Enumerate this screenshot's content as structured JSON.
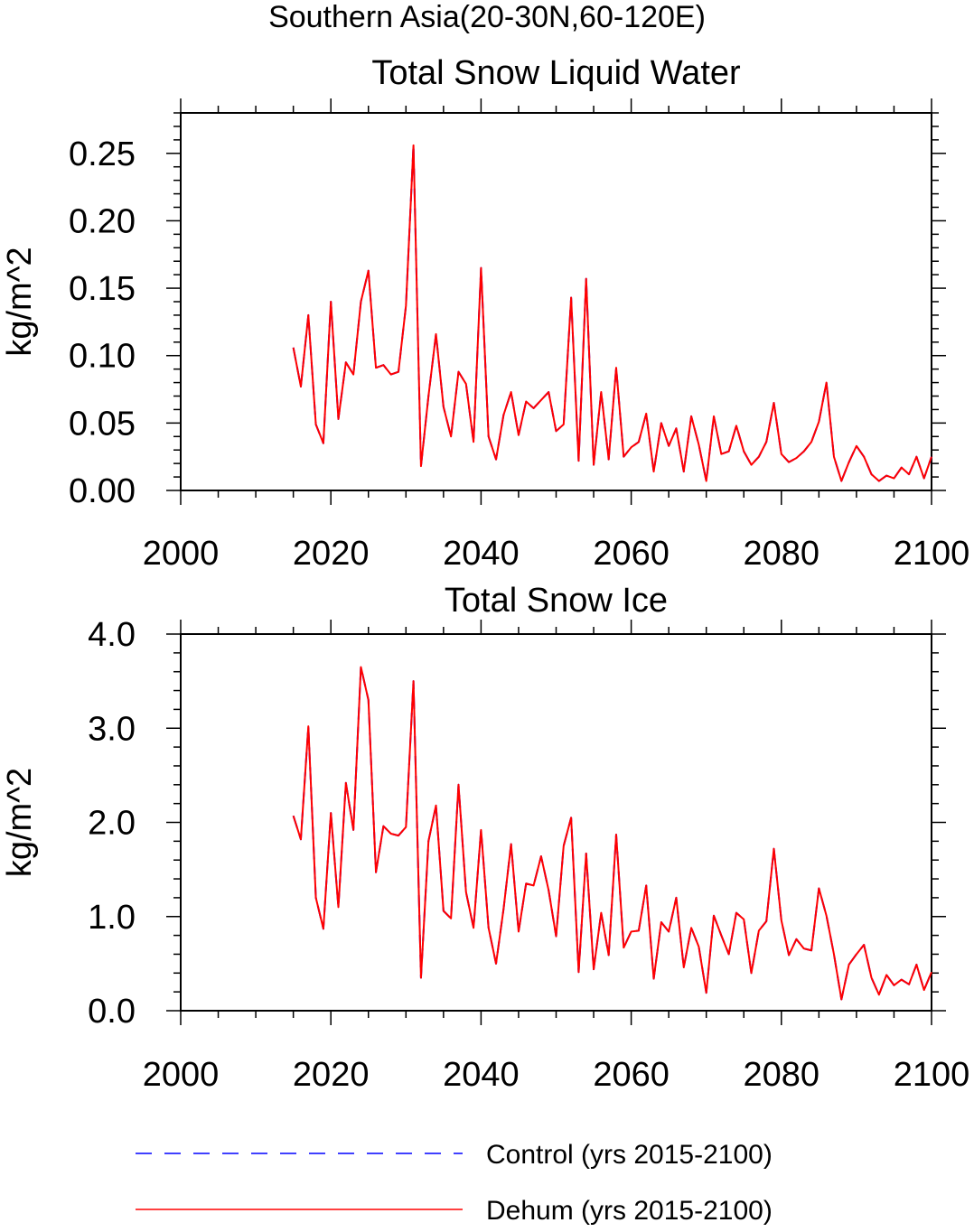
{
  "figure": {
    "suptitle": "Southern Asia(20-30N,60-120E)"
  },
  "chart_data": [
    {
      "type": "line",
      "title": "Total Snow Liquid Water",
      "xlabel": "",
      "ylabel": "kg/m^2",
      "xlim": [
        2000,
        2100
      ],
      "ylim": [
        0.0,
        0.28
      ],
      "xticks": [
        2000,
        2020,
        2040,
        2060,
        2080,
        2100
      ],
      "xtick_labels": [
        "2000",
        "2020",
        "2040",
        "2060",
        "2080",
        "2100"
      ],
      "yticks": [
        0.0,
        0.05,
        0.1,
        0.15,
        0.2,
        0.25
      ],
      "ytick_labels": [
        "0.00",
        "0.05",
        "0.10",
        "0.15",
        "0.20",
        "0.25"
      ],
      "x": [
        2015,
        2016,
        2017,
        2018,
        2019,
        2020,
        2021,
        2022,
        2023,
        2024,
        2025,
        2026,
        2027,
        2028,
        2029,
        2030,
        2031,
        2032,
        2033,
        2034,
        2035,
        2036,
        2037,
        2038,
        2039,
        2040,
        2041,
        2042,
        2043,
        2044,
        2045,
        2046,
        2047,
        2048,
        2049,
        2050,
        2051,
        2052,
        2053,
        2054,
        2055,
        2056,
        2057,
        2058,
        2059,
        2060,
        2061,
        2062,
        2063,
        2064,
        2065,
        2066,
        2067,
        2068,
        2069,
        2070,
        2071,
        2072,
        2073,
        2074,
        2075,
        2076,
        2077,
        2078,
        2079,
        2080,
        2081,
        2082,
        2083,
        2084,
        2085,
        2086,
        2087,
        2088,
        2089,
        2090,
        2091,
        2092,
        2093,
        2094,
        2095,
        2096,
        2097,
        2098,
        2099,
        2100
      ],
      "series": [
        {
          "name": "Control (yrs 2015-2100)",
          "color": "#0000ff",
          "style": "dashed",
          "values": [
            0.106,
            0.077,
            0.13,
            0.049,
            0.035,
            0.14,
            0.053,
            0.095,
            0.086,
            0.14,
            0.163,
            0.091,
            0.093,
            0.086,
            0.088,
            0.137,
            0.256,
            0.018,
            0.07,
            0.116,
            0.062,
            0.04,
            0.088,
            0.079,
            0.036,
            0.165,
            0.04,
            0.023,
            0.056,
            0.073,
            0.041,
            0.066,
            0.061,
            0.067,
            0.073,
            0.044,
            0.049,
            0.143,
            0.022,
            0.157,
            0.019,
            0.073,
            0.023,
            0.091,
            0.025,
            0.032,
            0.036,
            0.057,
            0.014,
            0.05,
            0.033,
            0.046,
            0.014,
            0.055,
            0.034,
            0.007,
            0.055,
            0.027,
            0.029,
            0.048,
            0.029,
            0.019,
            0.025,
            0.036,
            0.065,
            0.027,
            0.021,
            0.024,
            0.029,
            0.036,
            0.051,
            0.08,
            0.025,
            0.007,
            0.021,
            0.033,
            0.025,
            0.012,
            0.007,
            0.011,
            0.009,
            0.017,
            0.012,
            0.025,
            0.009,
            0.025
          ]
        },
        {
          "name": "Dehum (yrs 2015-2100)",
          "color": "#ff0000",
          "style": "solid",
          "values": [
            0.106,
            0.077,
            0.13,
            0.049,
            0.035,
            0.14,
            0.053,
            0.095,
            0.086,
            0.14,
            0.163,
            0.091,
            0.093,
            0.086,
            0.088,
            0.137,
            0.256,
            0.018,
            0.07,
            0.116,
            0.062,
            0.04,
            0.088,
            0.079,
            0.036,
            0.165,
            0.04,
            0.023,
            0.056,
            0.073,
            0.041,
            0.066,
            0.061,
            0.067,
            0.073,
            0.044,
            0.049,
            0.143,
            0.022,
            0.157,
            0.019,
            0.073,
            0.023,
            0.091,
            0.025,
            0.032,
            0.036,
            0.057,
            0.014,
            0.05,
            0.033,
            0.046,
            0.014,
            0.055,
            0.034,
            0.007,
            0.055,
            0.027,
            0.029,
            0.048,
            0.029,
            0.019,
            0.025,
            0.036,
            0.065,
            0.027,
            0.021,
            0.024,
            0.029,
            0.036,
            0.051,
            0.08,
            0.025,
            0.007,
            0.021,
            0.033,
            0.025,
            0.012,
            0.007,
            0.011,
            0.009,
            0.017,
            0.012,
            0.025,
            0.009,
            0.025
          ]
        }
      ]
    },
    {
      "type": "line",
      "title": "Total Snow Ice",
      "xlabel": "",
      "ylabel": "kg/m^2",
      "xlim": [
        2000,
        2100
      ],
      "ylim": [
        0.0,
        4.0
      ],
      "xticks": [
        2000,
        2020,
        2040,
        2060,
        2080,
        2100
      ],
      "xtick_labels": [
        "2000",
        "2020",
        "2040",
        "2060",
        "2080",
        "2100"
      ],
      "yticks": [
        0.0,
        1.0,
        2.0,
        3.0,
        4.0
      ],
      "ytick_labels": [
        "0.0",
        "1.0",
        "2.0",
        "3.0",
        "4.0"
      ],
      "x": [
        2015,
        2016,
        2017,
        2018,
        2019,
        2020,
        2021,
        2022,
        2023,
        2024,
        2025,
        2026,
        2027,
        2028,
        2029,
        2030,
        2031,
        2032,
        2033,
        2034,
        2035,
        2036,
        2037,
        2038,
        2039,
        2040,
        2041,
        2042,
        2043,
        2044,
        2045,
        2046,
        2047,
        2048,
        2049,
        2050,
        2051,
        2052,
        2053,
        2054,
        2055,
        2056,
        2057,
        2058,
        2059,
        2060,
        2061,
        2062,
        2063,
        2064,
        2065,
        2066,
        2067,
        2068,
        2069,
        2070,
        2071,
        2072,
        2073,
        2074,
        2075,
        2076,
        2077,
        2078,
        2079,
        2080,
        2081,
        2082,
        2083,
        2084,
        2085,
        2086,
        2087,
        2088,
        2089,
        2090,
        2091,
        2092,
        2093,
        2094,
        2095,
        2096,
        2097,
        2098,
        2099,
        2100
      ],
      "series": [
        {
          "name": "Control (yrs 2015-2100)",
          "color": "#0000ff",
          "style": "dashed",
          "values": [
            2.07,
            1.82,
            3.02,
            1.2,
            0.87,
            2.1,
            1.1,
            2.42,
            1.92,
            3.65,
            3.3,
            1.47,
            1.96,
            1.88,
            1.86,
            1.95,
            3.5,
            0.35,
            1.8,
            2.18,
            1.06,
            0.98,
            2.4,
            1.26,
            0.88,
            1.92,
            0.88,
            0.5,
            1.08,
            1.77,
            0.84,
            1.35,
            1.33,
            1.64,
            1.28,
            0.79,
            1.75,
            2.05,
            0.41,
            1.67,
            0.44,
            1.04,
            0.59,
            1.87,
            0.67,
            0.84,
            0.85,
            1.33,
            0.34,
            0.94,
            0.84,
            1.2,
            0.46,
            0.88,
            0.68,
            0.19,
            1.01,
            0.8,
            0.6,
            1.04,
            0.97,
            0.4,
            0.85,
            0.95,
            1.72,
            0.96,
            0.59,
            0.76,
            0.66,
            0.64,
            1.3,
            1.01,
            0.6,
            0.12,
            0.49,
            0.6,
            0.7,
            0.35,
            0.17,
            0.38,
            0.27,
            0.33,
            0.28,
            0.49,
            0.22,
            0.41
          ]
        },
        {
          "name": "Dehum (yrs 2015-2100)",
          "color": "#ff0000",
          "style": "solid",
          "values": [
            2.07,
            1.82,
            3.02,
            1.2,
            0.87,
            2.1,
            1.1,
            2.42,
            1.92,
            3.65,
            3.3,
            1.47,
            1.96,
            1.88,
            1.86,
            1.95,
            3.5,
            0.35,
            1.8,
            2.18,
            1.06,
            0.98,
            2.4,
            1.26,
            0.88,
            1.92,
            0.88,
            0.5,
            1.08,
            1.77,
            0.84,
            1.35,
            1.33,
            1.64,
            1.28,
            0.79,
            1.75,
            2.05,
            0.41,
            1.67,
            0.44,
            1.04,
            0.59,
            1.87,
            0.67,
            0.84,
            0.85,
            1.33,
            0.34,
            0.94,
            0.84,
            1.2,
            0.46,
            0.88,
            0.68,
            0.19,
            1.01,
            0.8,
            0.6,
            1.04,
            0.97,
            0.4,
            0.85,
            0.95,
            1.72,
            0.96,
            0.59,
            0.76,
            0.66,
            0.64,
            1.3,
            1.01,
            0.6,
            0.12,
            0.49,
            0.6,
            0.7,
            0.35,
            0.17,
            0.38,
            0.27,
            0.33,
            0.28,
            0.49,
            0.22,
            0.41
          ]
        }
      ]
    }
  ],
  "legend": {
    "items": [
      {
        "label": "Control (yrs 2015-2100)",
        "color": "#0000ff",
        "style": "dashed"
      },
      {
        "label": "Dehum (yrs 2015-2100)",
        "color": "#ff0000",
        "style": "solid"
      }
    ]
  }
}
